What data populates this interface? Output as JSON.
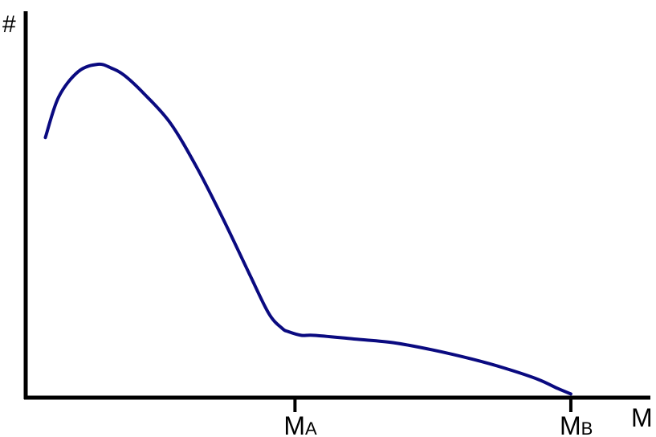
{
  "chart_data": {
    "type": "line",
    "ylabel": "#",
    "xlabel": "M",
    "ticks": [
      {
        "main": "M",
        "sub": "A",
        "x": 0.41
      },
      {
        "main": "M",
        "sub": "B",
        "x": 0.83
      }
    ],
    "xlim": [
      0,
      1
    ],
    "ylim": [
      0,
      1
    ],
    "grid": false,
    "legend": "none",
    "line_color": "#0a0a80",
    "axis_color": "#000000",
    "series": [
      {
        "x": [
          0.03,
          0.05,
          0.08,
          0.11,
          0.13,
          0.15,
          0.18,
          0.22,
          0.26,
          0.3,
          0.34,
          0.37,
          0.39,
          0.4,
          0.42,
          0.44,
          0.5,
          0.56,
          0.62,
          0.68,
          0.73,
          0.78,
          0.81,
          0.83
        ],
        "y": [
          0.71,
          0.82,
          0.89,
          0.91,
          0.9,
          0.88,
          0.83,
          0.75,
          0.63,
          0.49,
          0.34,
          0.23,
          0.19,
          0.18,
          0.17,
          0.17,
          0.16,
          0.15,
          0.13,
          0.105,
          0.08,
          0.05,
          0.025,
          0.01
        ]
      }
    ]
  }
}
